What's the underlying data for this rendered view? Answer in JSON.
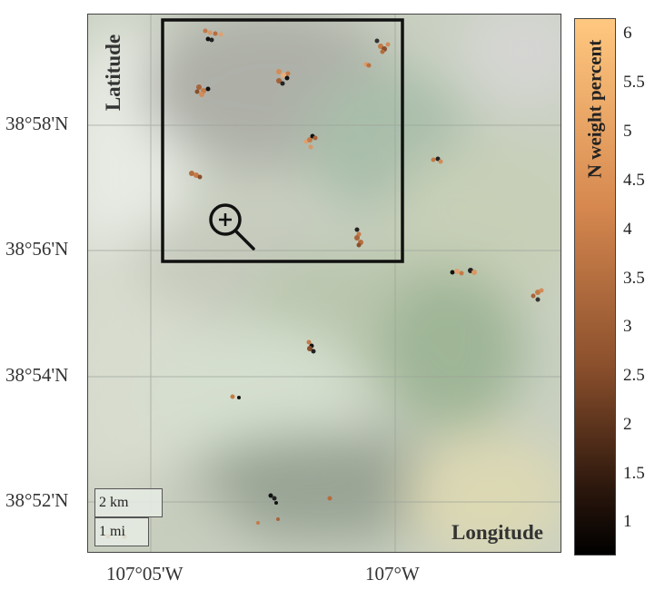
{
  "map": {
    "latitude_ticks": [
      "38°58'N",
      "38°56'N",
      "38°54'N",
      "38°52'N"
    ],
    "longitude_ticks": [
      "107°05'W",
      "107°W"
    ],
    "latitude_label": "Latitude",
    "longitude_label": "Longitude"
  },
  "scale_bar": {
    "km_label": "2 km",
    "mi_label": "1 mi"
  },
  "colorbar": {
    "title": "N weight percent",
    "ticks": [
      "6",
      "5.5",
      "5",
      "4.5",
      "4",
      "3.5",
      "3",
      "2.5",
      "2",
      "1.5",
      "1"
    ],
    "color_low": "#000000",
    "color_high": "#ffc880"
  },
  "zoom_tool": {
    "icon": "zoom-in-icon"
  },
  "colors": {
    "selection_box": "#111111",
    "gridline": "#9aa39a"
  }
}
